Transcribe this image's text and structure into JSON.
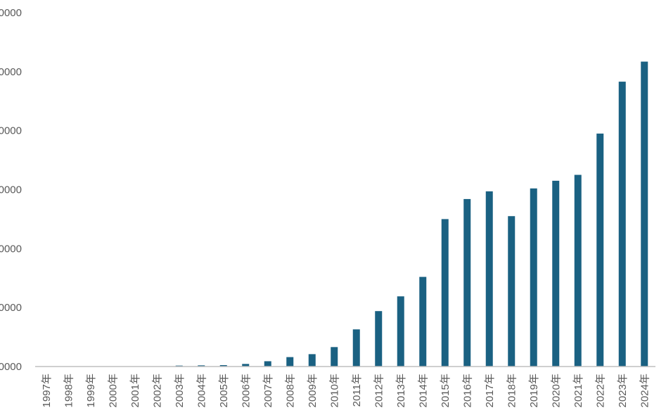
{
  "chart_data": {
    "type": "bar",
    "title": "",
    "xlabel": "",
    "ylabel": "",
    "bar_color": "#1a6182",
    "axis_color": "#bfbfbf",
    "label_color": "#595959",
    "grid": false,
    "ylim": [
      0,
      300000
    ],
    "y_ticks": [
      0,
      50000,
      100000,
      150000,
      200000,
      250000,
      300000
    ],
    "y_tick_labels": [
      "0000",
      "0000",
      "0000",
      "0000",
      "0000",
      "0000",
      "0000"
    ],
    "categories": [
      "1997年",
      "1998年",
      "1999年",
      "2000年",
      "2001年",
      "2002年",
      "2003年",
      "2004年",
      "2005年",
      "2006年",
      "2007年",
      "2008年",
      "2009年",
      "2010年",
      "2011年",
      "2012年",
      "2013年",
      "2014年",
      "2015年",
      "2016年",
      "2017年",
      "2018年",
      "2019年",
      "2020年",
      "2021年",
      "2022年",
      "2023年",
      "2024年"
    ],
    "values": [
      0,
      0,
      0,
      0,
      0,
      0,
      800,
      1000,
      1200,
      2200,
      4500,
      8000,
      10500,
      16500,
      31500,
      47000,
      59500,
      76000,
      125000,
      142000,
      148500,
      127500,
      151000,
      157500,
      162500,
      197500,
      241500,
      258500
    ]
  }
}
